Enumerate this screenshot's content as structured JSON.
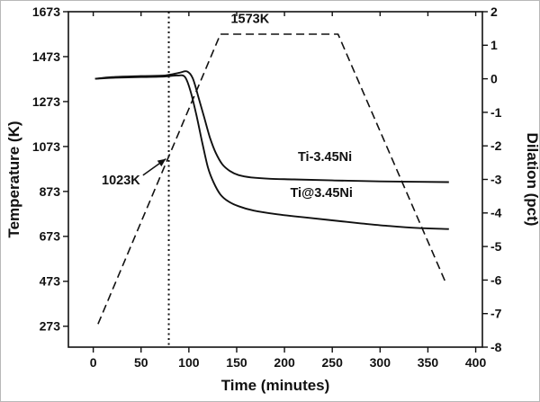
{
  "figure": {
    "background": "#ffffff"
  },
  "chart_data": {
    "type": "line",
    "title": "",
    "xlabel": "Time (minutes)",
    "ylabel_left": "Temperature (K)",
    "ylabel_right": "Dilation (pct)",
    "grid": false,
    "line_color": "#111111",
    "xlim": [
      -26,
      407
    ],
    "x_ticks": [
      0,
      50,
      100,
      150,
      200,
      250,
      300,
      350,
      400
    ],
    "ylim_left": [
      180,
      1673
    ],
    "yticks_left": [
      273,
      473,
      673,
      873,
      1073,
      1273,
      1473,
      1673
    ],
    "ylim_right": [
      -8,
      2
    ],
    "yticks_right": [
      -8,
      -7,
      -6,
      -5,
      -4,
      -3,
      -2,
      -1,
      0,
      1,
      2
    ],
    "series": [
      {
        "name": "temperature-program",
        "axis": "left",
        "style": "dashed",
        "smooth": false,
        "points": [
          [
            5,
            283
          ],
          [
            133,
            1573
          ],
          [
            256,
            1573
          ],
          [
            368,
            473
          ]
        ]
      },
      {
        "name": "Ti-3.45Ni",
        "axis": "right",
        "style": "solid",
        "smooth": true,
        "points": [
          [
            2,
            0
          ],
          [
            20,
            0.05
          ],
          [
            50,
            0.08
          ],
          [
            75,
            0.1
          ],
          [
            90,
            0.18
          ],
          [
            98,
            0.22
          ],
          [
            104,
            0.02
          ],
          [
            110,
            -0.55
          ],
          [
            116,
            -1.15
          ],
          [
            122,
            -1.75
          ],
          [
            128,
            -2.2
          ],
          [
            135,
            -2.55
          ],
          [
            143,
            -2.75
          ],
          [
            152,
            -2.87
          ],
          [
            165,
            -2.94
          ],
          [
            185,
            -2.98
          ],
          [
            210,
            -3.0
          ],
          [
            250,
            -3.03
          ],
          [
            300,
            -3.06
          ],
          [
            372,
            -3.08
          ]
        ]
      },
      {
        "name": "Ti@3.45Ni",
        "axis": "right",
        "style": "solid",
        "smooth": true,
        "points": [
          [
            2,
            0
          ],
          [
            20,
            0.03
          ],
          [
            50,
            0.05
          ],
          [
            75,
            0.07
          ],
          [
            88,
            0.1
          ],
          [
            96,
            0.05
          ],
          [
            102,
            -0.4
          ],
          [
            108,
            -1.1
          ],
          [
            114,
            -1.9
          ],
          [
            120,
            -2.65
          ],
          [
            126,
            -3.1
          ],
          [
            133,
            -3.45
          ],
          [
            141,
            -3.65
          ],
          [
            152,
            -3.8
          ],
          [
            168,
            -3.93
          ],
          [
            190,
            -4.03
          ],
          [
            220,
            -4.13
          ],
          [
            250,
            -4.22
          ],
          [
            280,
            -4.31
          ],
          [
            310,
            -4.39
          ],
          [
            340,
            -4.45
          ],
          [
            372,
            -4.48
          ]
        ]
      }
    ],
    "reference_line": {
      "name": "onset-time-marker",
      "style": "dotted",
      "x": 79
    },
    "annotations": [
      {
        "name": "plateau-temp-label",
        "text": "1573K",
        "t": 164,
        "axis": "left",
        "v": 1622,
        "anchor": "middle"
      },
      {
        "name": "onset-temp-label",
        "text": "1023K",
        "t": 29,
        "axis": "left",
        "v": 905,
        "anchor": "middle"
      },
      {
        "name": "series-label-ti-dash-ni",
        "text": "Ti-3.45Ni",
        "t": 214,
        "axis": "right",
        "v": -2.45,
        "anchor": "start"
      },
      {
        "name": "series-label-ti-at-ni",
        "text": "Ti@3.45Ni",
        "t": 206,
        "axis": "right",
        "v": -3.52,
        "anchor": "start"
      }
    ],
    "arrow": {
      "axis": "left",
      "from_t": 52,
      "from_v": 945,
      "to_t": 76,
      "to_v": 1018
    }
  }
}
